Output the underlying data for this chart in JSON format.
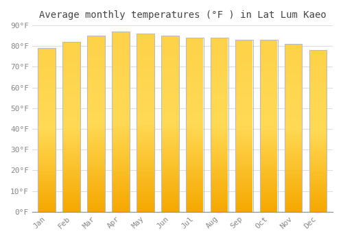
{
  "title": "Average monthly temperatures (°F ) in Lat Lum Kaeo",
  "months": [
    "Jan",
    "Feb",
    "Mar",
    "Apr",
    "May",
    "Jun",
    "Jul",
    "Aug",
    "Sep",
    "Oct",
    "Nov",
    "Dec"
  ],
  "values": [
    79,
    82,
    85,
    87,
    86,
    85,
    84,
    84,
    83,
    83,
    81,
    78
  ],
  "bar_color_center": "#FFD966",
  "bar_color_edge": "#F5A800",
  "bar_outline_color": "#BBBBBB",
  "background_color": "#FFFFFF",
  "plot_bg_color": "#FFFFFF",
  "grid_color": "#DDDDDD",
  "ylim": [
    0,
    90
  ],
  "yticks": [
    0,
    10,
    20,
    30,
    40,
    50,
    60,
    70,
    80,
    90
  ],
  "ytick_labels": [
    "0°F",
    "10°F",
    "20°F",
    "30°F",
    "40°F",
    "50°F",
    "60°F",
    "70°F",
    "80°F",
    "90°F"
  ],
  "title_fontsize": 10,
  "tick_fontsize": 8,
  "figsize": [
    5.0,
    3.5
  ],
  "dpi": 100
}
